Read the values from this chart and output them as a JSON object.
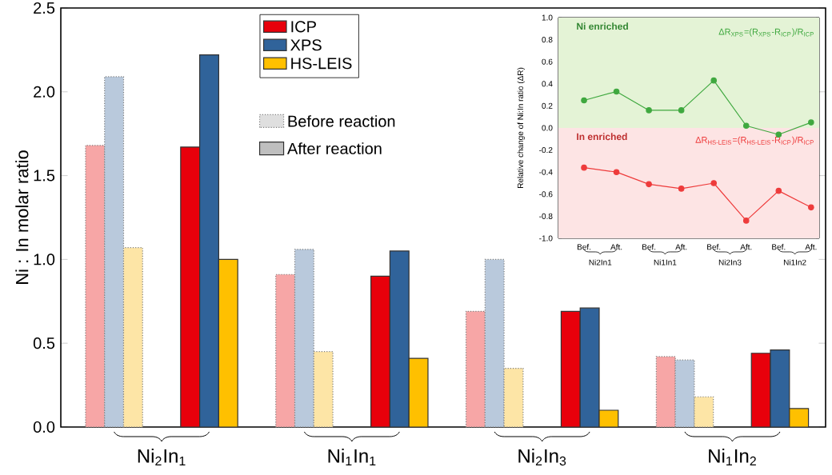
{
  "chart_data": [
    {
      "type": "bar",
      "ylabel": "Ni : In molar ratio",
      "categories": [
        "Ni$_{2}$In$_{1}$",
        "Ni$_{1}$In$_{1}$",
        "Ni$_{2}$In$_{3}$",
        "Ni$_{1}$In$_{2}$"
      ],
      "ylim": [
        0,
        2.5
      ],
      "yticks": [
        {
          "value": 0,
          "label": "0.0"
        },
        0.5,
        {
          "value": 1,
          "label": "1.0"
        },
        1.5,
        {
          "value": 2,
          "label": "2.0"
        },
        2.5
      ],
      "legend": "top",
      "annotations": [
        "Before reaction",
        "After reaction"
      ],
      "series": [
        {
          "color": "#f7a6a6",
          "line_style": "dotted",
          "values": [
            1.68,
            0.91,
            0.69,
            0.42
          ]
        },
        {
          "color": "#b9c9dc",
          "line_style": "dotted",
          "values": [
            2.09,
            1.06,
            1.0,
            0.4
          ]
        },
        {
          "color": "#fde5a6",
          "line_style": "dotted",
          "values": [
            1.07,
            0.45,
            0.35,
            0.18
          ]
        },
        {
          "name": "ICP",
          "color": "#e8000b",
          "line_style": "solid",
          "values": [
            1.67,
            0.9,
            0.69,
            0.44
          ]
        },
        {
          "name": "XPS",
          "color": "#30639a",
          "line_style": "solid",
          "values": [
            2.22,
            1.05,
            0.71,
            0.46
          ]
        },
        {
          "name": "HS-LEIS",
          "color": "#ffc000",
          "line_style": "solid",
          "values": [
            1.0,
            0.41,
            0.1,
            0.11
          ]
        }
      ]
    },
    {
      "type": "line",
      "ylabel": "Relative change of Ni:In ratio (ΔR)",
      "categories": [
        "Bef.",
        "Aft.",
        "Bef.",
        "Aft.",
        "Bef.",
        "Aft.",
        "Bef.",
        "Aft."
      ],
      "ylim": [
        -1,
        1
      ],
      "yticks": [
        {
          "value": -1,
          "label": "-1.0"
        },
        -0.8,
        -0.6,
        -0.4,
        -0.2,
        {
          "value": 0,
          "label": "0.0"
        },
        0.2,
        0.4,
        0.6,
        0.8,
        {
          "value": 1,
          "label": "1.0"
        }
      ],
      "marker": "circle",
      "bands": [
        {
          "axis": "y",
          "from": 0,
          "to": 1,
          "label": "Ni enriched",
          "color": "#e4f3d6"
        },
        {
          "axis": "y",
          "from": -1,
          "to": 0,
          "label": "In enriched",
          "color": "#fde4e4"
        }
      ],
      "annotations": [
        "Ni2In1",
        "Ni1In1",
        "Ni2In3",
        "Ni1In2"
      ],
      "series": [
        {
          "name": "ΔR$_{XPS}$=(R$_{XPS}$-R$_{ICP}$)/R$_{ICP}$",
          "color": "#3fa83f",
          "values": [
            0.25,
            0.33,
            0.16,
            0.16,
            0.43,
            0.02,
            -0.06,
            0.05
          ]
        },
        {
          "name": "ΔR$_{HS-LEIS}$=(R$_{HS-LEIS}$-R$_{ICP}$)/R$_{ICP}$",
          "color": "#ee3b3b",
          "values": [
            -0.36,
            -0.4,
            -0.51,
            -0.55,
            -0.5,
            -0.84,
            -0.57,
            -0.72
          ]
        }
      ]
    }
  ]
}
